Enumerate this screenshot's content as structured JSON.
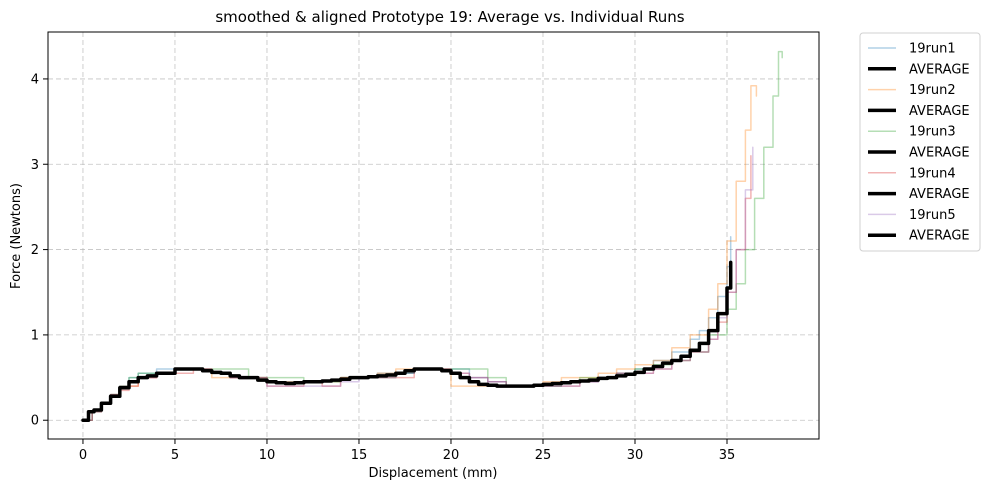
{
  "chart_data": {
    "type": "line",
    "title": "smoothed & aligned Prototype 19: Average vs. Individual Runs",
    "xlabel": "Displacement (mm)",
    "ylabel": "Force (Newtons)",
    "xlim": [
      -1.9,
      40.0
    ],
    "ylim": [
      -0.22,
      4.55
    ],
    "xticks": [
      0,
      5,
      10,
      15,
      20,
      25,
      30,
      35
    ],
    "yticks": [
      0,
      1,
      2,
      3,
      4
    ],
    "grid": true,
    "legend_position": "outside-top-right",
    "legend": [
      "19run1",
      "AVERAGE",
      "19run2",
      "AVERAGE",
      "19run3",
      "AVERAGE",
      "19run4",
      "AVERAGE",
      "19run5",
      "AVERAGE"
    ],
    "series": [
      {
        "name": "19run1",
        "color": "#1f77b4",
        "opacity": 0.35,
        "width": 1.5,
        "x": [
          0,
          0.5,
          1,
          1.5,
          2,
          2.5,
          3,
          4,
          5,
          6,
          7,
          8,
          9,
          10,
          11,
          12,
          13,
          14,
          15,
          16,
          17,
          18,
          19,
          20,
          21,
          22,
          23,
          24,
          25,
          26,
          27,
          28,
          29,
          30,
          31,
          32,
          33,
          33.5,
          34,
          34.5,
          35,
          35.2
        ],
        "y": [
          0,
          0.1,
          0.2,
          0.3,
          0.4,
          0.5,
          0.55,
          0.6,
          0.6,
          0.6,
          0.55,
          0.5,
          0.5,
          0.45,
          0.45,
          0.45,
          0.45,
          0.5,
          0.5,
          0.55,
          0.55,
          0.6,
          0.6,
          0.6,
          0.5,
          0.45,
          0.4,
          0.4,
          0.4,
          0.45,
          0.45,
          0.5,
          0.55,
          0.6,
          0.7,
          0.8,
          0.95,
          1.05,
          1.2,
          1.45,
          1.8,
          2.15
        ]
      },
      {
        "name": "19run2",
        "color": "#ff7f0e",
        "opacity": 0.35,
        "width": 1.5,
        "x": [
          0,
          0.5,
          1,
          1.5,
          2,
          2.5,
          3,
          4,
          5,
          6,
          7,
          8,
          9,
          10,
          11,
          12,
          13,
          14,
          15,
          16,
          17,
          18,
          19,
          20,
          21,
          22,
          23,
          24,
          25,
          26,
          27,
          28,
          29,
          30,
          31,
          32,
          33,
          34,
          34.5,
          35,
          35.5,
          36,
          36.3,
          36.6
        ],
        "y": [
          0,
          0.1,
          0.2,
          0.3,
          0.4,
          0.4,
          0.5,
          0.55,
          0.6,
          0.6,
          0.5,
          0.5,
          0.5,
          0.45,
          0.45,
          0.45,
          0.45,
          0.5,
          0.5,
          0.55,
          0.6,
          0.6,
          0.6,
          0.4,
          0.4,
          0.4,
          0.4,
          0.4,
          0.45,
          0.5,
          0.5,
          0.55,
          0.6,
          0.65,
          0.7,
          0.85,
          1.0,
          1.3,
          1.6,
          2.1,
          2.8,
          3.4,
          3.92,
          3.8
        ]
      },
      {
        "name": "19run3",
        "color": "#2ca02c",
        "opacity": 0.35,
        "width": 1.5,
        "x": [
          0,
          0.5,
          1,
          1.5,
          2,
          2.5,
          3,
          4,
          5,
          6,
          7,
          8,
          9,
          10,
          11,
          12,
          13,
          14,
          15,
          16,
          17,
          18,
          19,
          20,
          21,
          22,
          23,
          24,
          25,
          26,
          27,
          28,
          29,
          30,
          31,
          32,
          33,
          34,
          35,
          35.5,
          36,
          36.5,
          37,
          37.5,
          37.8,
          38.0
        ],
        "y": [
          0,
          0.1,
          0.2,
          0.3,
          0.4,
          0.5,
          0.55,
          0.55,
          0.6,
          0.6,
          0.6,
          0.6,
          0.5,
          0.5,
          0.5,
          0.45,
          0.45,
          0.5,
          0.5,
          0.5,
          0.55,
          0.6,
          0.6,
          0.6,
          0.6,
          0.5,
          0.4,
          0.4,
          0.4,
          0.45,
          0.5,
          0.5,
          0.55,
          0.6,
          0.65,
          0.7,
          0.8,
          1.0,
          1.3,
          1.6,
          2.0,
          2.6,
          3.2,
          3.8,
          4.32,
          4.25
        ]
      },
      {
        "name": "19run4",
        "color": "#d62728",
        "opacity": 0.35,
        "width": 1.5,
        "x": [
          0,
          0.5,
          1,
          1.5,
          2,
          2.5,
          3,
          4,
          5,
          6,
          7,
          8,
          9,
          10,
          11,
          12,
          13,
          14,
          15,
          16,
          17,
          18,
          19,
          20,
          21,
          22,
          23,
          24,
          25,
          26,
          27,
          28,
          29,
          30,
          31,
          32,
          33,
          34,
          34.5,
          35,
          35.5,
          36,
          36.3
        ],
        "y": [
          0,
          0.1,
          0.2,
          0.3,
          0.35,
          0.4,
          0.5,
          0.55,
          0.55,
          0.6,
          0.55,
          0.5,
          0.5,
          0.4,
          0.4,
          0.45,
          0.4,
          0.5,
          0.5,
          0.5,
          0.5,
          0.6,
          0.6,
          0.55,
          0.5,
          0.45,
          0.4,
          0.4,
          0.4,
          0.4,
          0.45,
          0.5,
          0.55,
          0.55,
          0.6,
          0.7,
          0.8,
          0.95,
          1.15,
          1.5,
          2.0,
          2.6,
          3.1
        ]
      },
      {
        "name": "19run5",
        "color": "#9467bd",
        "opacity": 0.35,
        "width": 1.5,
        "x": [
          0,
          0.5,
          1,
          1.5,
          2,
          2.5,
          3,
          4,
          5,
          6,
          7,
          8,
          9,
          10,
          11,
          12,
          13,
          14,
          15,
          16,
          17,
          18,
          19,
          20,
          21,
          22,
          23,
          24,
          25,
          26,
          27,
          28,
          29,
          30,
          31,
          32,
          33,
          34,
          34.5,
          35,
          35.5,
          36,
          36.4
        ],
        "y": [
          0,
          0.1,
          0.2,
          0.3,
          0.4,
          0.45,
          0.5,
          0.55,
          0.6,
          0.6,
          0.55,
          0.5,
          0.5,
          0.4,
          0.4,
          0.4,
          0.4,
          0.45,
          0.5,
          0.5,
          0.55,
          0.6,
          0.6,
          0.55,
          0.5,
          0.45,
          0.4,
          0.4,
          0.4,
          0.4,
          0.45,
          0.5,
          0.55,
          0.55,
          0.6,
          0.7,
          0.8,
          0.95,
          1.2,
          1.5,
          2.0,
          2.7,
          3.2
        ]
      },
      {
        "name": "AVERAGE",
        "color": "#000000",
        "opacity": 1,
        "width": 3.5,
        "x": [
          0,
          0.3,
          0.6,
          1,
          1.5,
          2,
          2.5,
          3,
          3.5,
          4,
          4.5,
          5,
          5.5,
          6,
          6.5,
          7,
          7.5,
          8,
          8.5,
          9,
          9.5,
          10,
          10.5,
          11,
          11.5,
          12,
          12.5,
          13,
          13.5,
          14,
          14.5,
          15,
          15.5,
          16,
          16.5,
          17,
          17.5,
          18,
          18.5,
          19,
          19.5,
          20,
          20.5,
          21,
          21.5,
          22,
          22.5,
          23,
          23.5,
          24,
          24.5,
          25,
          25.5,
          26,
          26.5,
          27,
          27.5,
          28,
          28.5,
          29,
          29.5,
          30,
          30.5,
          31,
          31.5,
          32,
          32.5,
          33,
          33.5,
          34,
          34.5,
          35,
          35.2
        ],
        "y": [
          0,
          0.1,
          0.12,
          0.2,
          0.28,
          0.38,
          0.45,
          0.5,
          0.52,
          0.55,
          0.55,
          0.6,
          0.6,
          0.6,
          0.58,
          0.56,
          0.55,
          0.52,
          0.5,
          0.5,
          0.47,
          0.45,
          0.44,
          0.43,
          0.44,
          0.45,
          0.45,
          0.46,
          0.47,
          0.48,
          0.5,
          0.5,
          0.51,
          0.52,
          0.53,
          0.55,
          0.58,
          0.6,
          0.6,
          0.6,
          0.58,
          0.55,
          0.5,
          0.45,
          0.42,
          0.41,
          0.4,
          0.4,
          0.4,
          0.4,
          0.41,
          0.42,
          0.43,
          0.44,
          0.45,
          0.46,
          0.47,
          0.49,
          0.5,
          0.52,
          0.54,
          0.56,
          0.6,
          0.63,
          0.67,
          0.7,
          0.75,
          0.82,
          0.9,
          1.05,
          1.25,
          1.55,
          1.85
        ]
      }
    ]
  }
}
